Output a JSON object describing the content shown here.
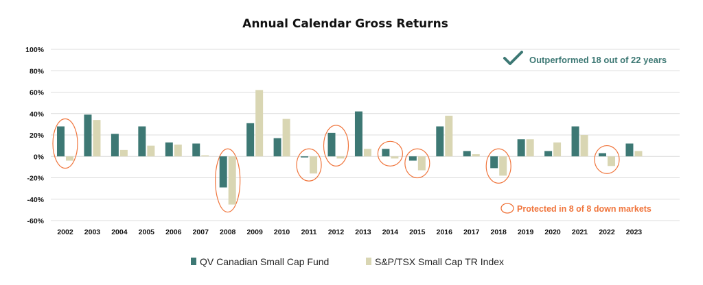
{
  "colors": {
    "fund": "#3d7874",
    "index": "#d9d6b3",
    "grid": "#dcdcdc",
    "annotation_good": "#3d7874",
    "annotation_protect": "#f0743b"
  },
  "icons": {
    "outperform": "checkmark-icon",
    "protected": "ellipse-outline-icon"
  },
  "chart_data": {
    "type": "bar",
    "title": "Annual Calendar Gross Returns",
    "xlabel": "",
    "ylabel": "",
    "ylim": [
      -60,
      100
    ],
    "yticks": [
      "100%",
      "80%",
      "60%",
      "40%",
      "20%",
      "0%",
      "-20%",
      "-40%",
      "-60%"
    ],
    "ytick_values": [
      100,
      80,
      60,
      40,
      20,
      0,
      -20,
      -40,
      -60
    ],
    "grid": true,
    "legend_position": "bottom",
    "categories": [
      "2002",
      "2003",
      "2004",
      "2005",
      "2006",
      "2007",
      "2008",
      "2009",
      "2010",
      "2011",
      "2012",
      "2013",
      "2014",
      "2015",
      "2016",
      "2017",
      "2018",
      "2019",
      "2020",
      "2021",
      "2022",
      "2023"
    ],
    "series": [
      {
        "name": "QV Canadian Small Cap Fund",
        "values": [
          28,
          39,
          21,
          28,
          13,
          12,
          -29,
          31,
          17,
          -1,
          22,
          42,
          7,
          -4,
          28,
          5,
          -11,
          16,
          5,
          28,
          3,
          12
        ]
      },
      {
        "name": "S&P/TSX Small Cap TR Index",
        "values": [
          -4,
          34,
          6,
          10,
          11,
          1,
          -45,
          62,
          35,
          -16,
          -2,
          7,
          -2,
          -13,
          38,
          2,
          -18,
          16,
          13,
          20,
          -9,
          5
        ]
      }
    ],
    "highlighted_down_markets": [
      "2002",
      "2008",
      "2011",
      "2012",
      "2014",
      "2015",
      "2018",
      "2022"
    ],
    "annotations": {
      "outperformed": "Outperformed 18 out of 22 years",
      "protected": "Protected in 8 of 8 down markets"
    }
  }
}
